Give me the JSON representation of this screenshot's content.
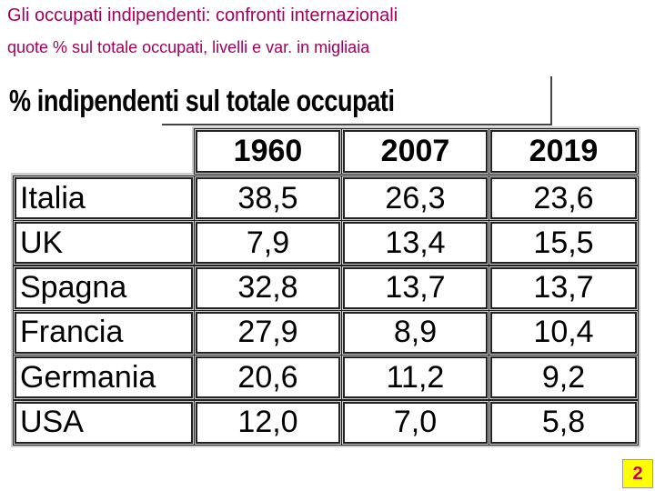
{
  "header": {
    "title": "Gli occupati indipendenti: confronti internazionali",
    "subtitle": "quote % sul totale occupati, livelli e var. in migliaia"
  },
  "table": {
    "caption": "% indipendenti sul totale occupati",
    "columns": [
      "1960",
      "2007",
      "2019"
    ],
    "rows": [
      [
        "Italia",
        "38,5",
        "26,3",
        "23,6"
      ],
      [
        "UK",
        "7,9",
        "13,4",
        "15,5"
      ],
      [
        "Spagna",
        "32,8",
        "13,7",
        "13,7"
      ],
      [
        "Francia",
        "27,9",
        "8,9",
        "10,4"
      ],
      [
        "Germania",
        "20,6",
        "11,2",
        "9,2"
      ],
      [
        "USA",
        "12,0",
        "7,0",
        "5,8"
      ]
    ]
  },
  "footer": {
    "page": "2"
  }
}
